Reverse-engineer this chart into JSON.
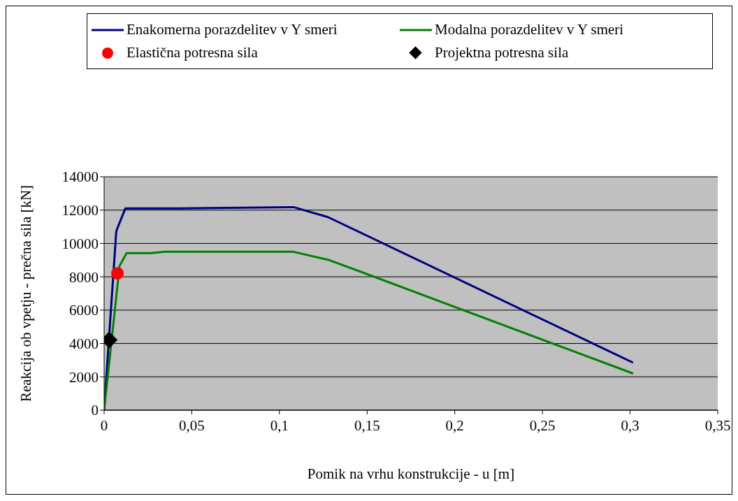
{
  "chart_data": {
    "type": "line",
    "xlabel": "Pomik na vrhu konstrukcije - u  [m]",
    "ylabel": "Reakcija ob vpetju - prečna sila  [kN]",
    "series": [
      {
        "name": "Enakomerna porazdelitev v Y smeri",
        "color": "#000080",
        "marker": "none",
        "x": [
          0,
          0.0069,
          0.0075,
          0.0121,
          0.03,
          0.06,
          0.108,
          0.1277,
          0.3017
        ],
        "values": [
          0,
          10700,
          10900,
          12100,
          12100,
          12120,
          12180,
          11580,
          2850
        ]
      },
      {
        "name": "Modalna porazdelitev v Y smeri",
        "color": "#008000",
        "marker": "none",
        "x": [
          0,
          0.0088,
          0.0128,
          0.0265,
          0.0348,
          0.108,
          0.1285,
          0.3017
        ],
        "values": [
          0,
          8650,
          9420,
          9420,
          9500,
          9500,
          9000,
          2200
        ]
      },
      {
        "name": "Elastična potresna sila",
        "type": "scatter",
        "color": "#ff0000",
        "marker": "circle",
        "x": [
          0.0076
        ],
        "values": [
          8210
        ]
      },
      {
        "name": "Projektna potresna sila",
        "type": "scatter",
        "color": "#000000",
        "marker": "diamond",
        "x": [
          0.0029
        ],
        "values": [
          4210
        ]
      }
    ],
    "xlim": [
      0,
      0.35
    ],
    "xticks": [
      0,
      {
        "value": 0.05,
        "label": "0,05"
      },
      {
        "value": 0.1,
        "label": "0,1"
      },
      {
        "value": 0.15,
        "label": "0,15"
      },
      {
        "value": 0.2,
        "label": "0,2"
      },
      {
        "value": 0.25,
        "label": "0,25"
      },
      {
        "value": 0.3,
        "label": "0,3"
      },
      {
        "value": 0.35,
        "label": "0,35"
      }
    ],
    "ylim": [
      0,
      14000
    ],
    "yticks": [
      0,
      2000,
      4000,
      6000,
      8000,
      10000,
      12000,
      14000
    ],
    "grid": "y",
    "legend": "top"
  }
}
